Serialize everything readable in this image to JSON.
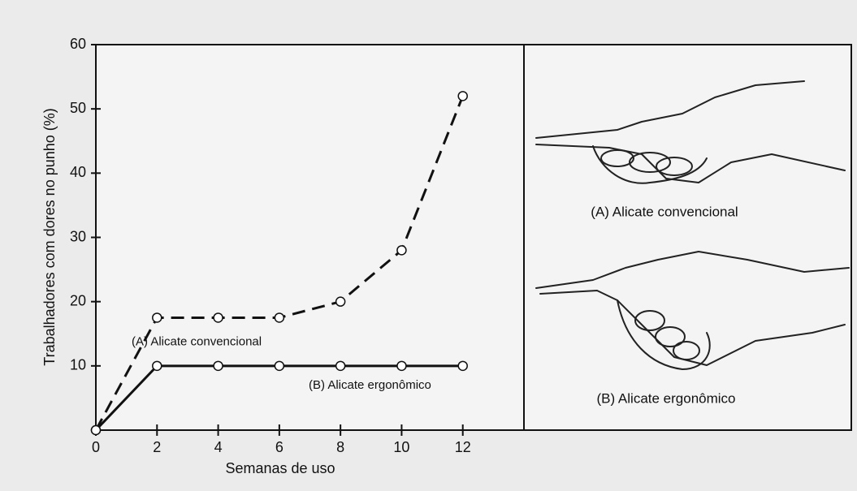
{
  "chart_data": {
    "type": "line",
    "xlabel": "Semanas de uso",
    "ylabel": "Trabalhadores com dores no punho (%)",
    "x": [
      0,
      2,
      4,
      6,
      8,
      10,
      12
    ],
    "series": [
      {
        "name": "(A) Alicate convencional",
        "color": "#111111",
        "line_style": "dashed",
        "values": [
          0,
          17.5,
          17.5,
          17.5,
          20,
          28,
          52
        ]
      },
      {
        "name": "(B) Alicate ergonômico",
        "color": "#111111",
        "line_style": "solid",
        "values": [
          0,
          10,
          10,
          10,
          10,
          10,
          10
        ]
      }
    ],
    "xlim": [
      0,
      14
    ],
    "ylim": [
      0,
      60
    ],
    "xticks": [
      0,
      2,
      4,
      6,
      8,
      10,
      12
    ],
    "yticks": [
      10,
      20,
      30,
      40,
      50,
      60
    ],
    "panel_labels": [
      "(A) Alicate convencional",
      "(B) Alicate ergonômico"
    ]
  }
}
